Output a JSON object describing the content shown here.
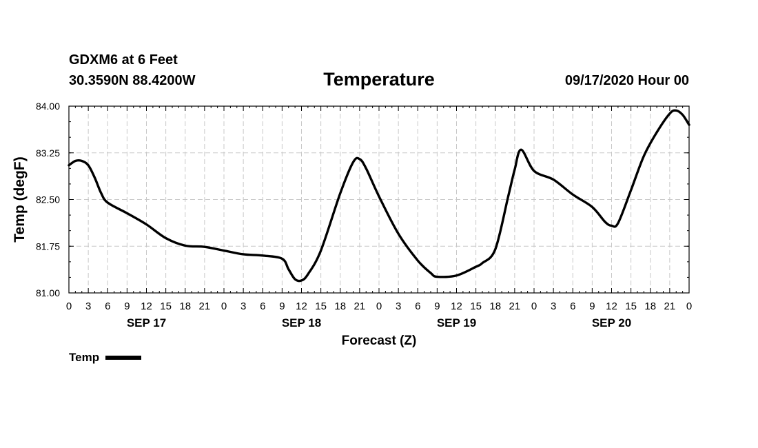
{
  "header": {
    "station": "GDXM6 at 6 Feet",
    "coords": "30.3590N 88.4200W",
    "title": "Temperature",
    "datetime": "09/17/2020 Hour 00"
  },
  "legend": {
    "label": "Temp"
  },
  "chart_data": {
    "type": "line",
    "title": "Temperature",
    "xlabel": "Forecast (Z)",
    "ylabel": "Temp (degF)",
    "ylim": [
      81.0,
      84.0
    ],
    "yticks": [
      81.0,
      81.75,
      82.5,
      83.25,
      84.0
    ],
    "ytick_labels": [
      "81.00",
      "81.75",
      "82.50",
      "83.25",
      "84.00"
    ],
    "xlim": [
      0,
      96
    ],
    "x_unit": "forecast hours from 09/17/2020 00Z",
    "xtick_labels": [
      "0",
      "3",
      "6",
      "9",
      "12",
      "15",
      "18",
      "21",
      "0",
      "3",
      "6",
      "9",
      "12",
      "15",
      "18",
      "21",
      "0",
      "3",
      "6",
      "9",
      "12",
      "15",
      "18",
      "21",
      "0",
      "3",
      "6",
      "9",
      "12",
      "15",
      "18",
      "21",
      "0"
    ],
    "day_labels": [
      {
        "hour": 12,
        "label": "SEP 17"
      },
      {
        "hour": 36,
        "label": "SEP 18"
      },
      {
        "hour": 60,
        "label": "SEP 19"
      },
      {
        "hour": 84,
        "label": "SEP 20"
      }
    ],
    "grid": true,
    "series": [
      {
        "name": "Temp",
        "color": "#000000",
        "x": [
          0,
          1,
          2,
          3,
          4,
          5,
          6,
          9,
          12,
          15,
          18,
          21,
          24,
          27,
          30,
          33,
          34,
          35,
          36,
          37,
          39,
          42,
          44,
          45,
          46,
          48,
          51,
          54,
          56,
          57,
          60,
          63,
          64,
          66,
          68,
          69,
          70,
          72,
          75,
          78,
          81,
          83,
          84,
          85,
          87,
          89,
          91,
          93,
          94,
          95,
          96
        ],
        "values": [
          83.05,
          83.12,
          83.12,
          83.05,
          82.85,
          82.6,
          82.45,
          82.28,
          82.1,
          81.88,
          81.76,
          81.74,
          81.68,
          81.62,
          81.6,
          81.55,
          81.38,
          81.22,
          81.2,
          81.3,
          81.68,
          82.6,
          83.1,
          83.15,
          83.0,
          82.55,
          81.95,
          81.52,
          81.32,
          81.26,
          81.28,
          81.42,
          81.48,
          81.7,
          82.55,
          82.98,
          83.3,
          82.96,
          82.82,
          82.58,
          82.38,
          82.14,
          82.08,
          82.12,
          82.65,
          83.2,
          83.58,
          83.88,
          83.93,
          83.86,
          83.7
        ]
      }
    ]
  }
}
